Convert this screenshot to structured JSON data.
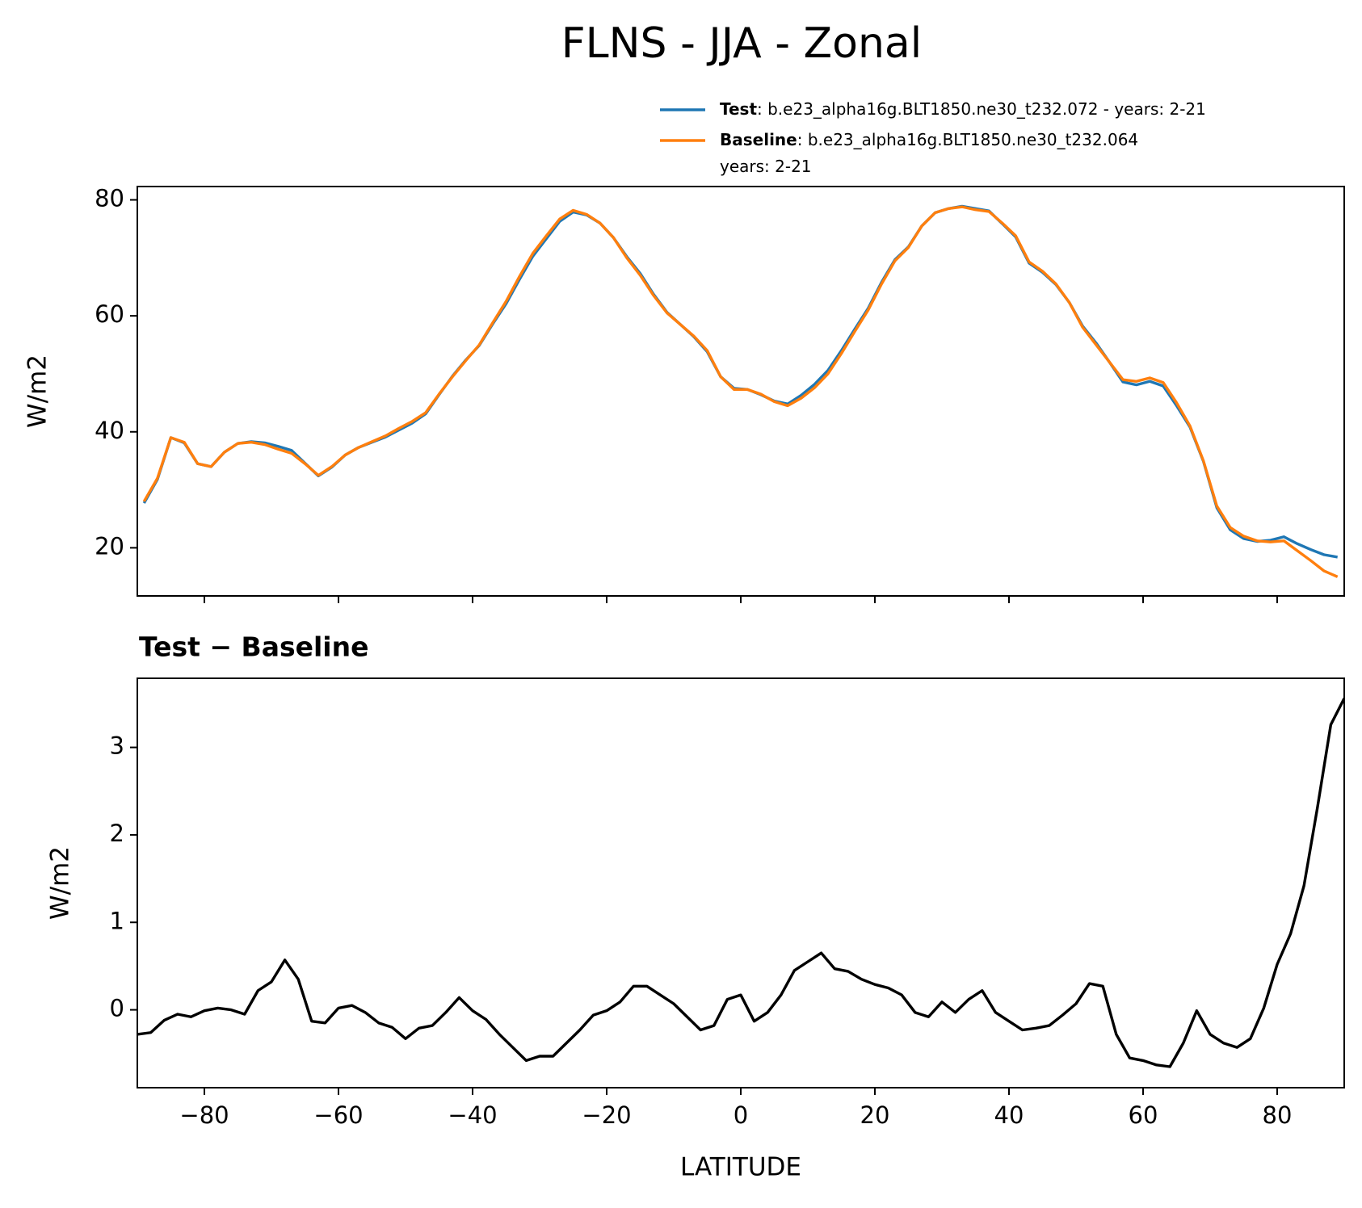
{
  "chart_data": [
    {
      "type": "line",
      "title": "FLNS - JJA - Zonal",
      "ylabel": "W/m2",
      "x": [
        -89,
        -87,
        -85,
        -83,
        -81,
        -79,
        -77,
        -75,
        -73,
        -71,
        -69,
        -67,
        -65,
        -63,
        -61,
        -59,
        -57,
        -55,
        -53,
        -51,
        -49,
        -47,
        -45,
        -43,
        -41,
        -39,
        -37,
        -35,
        -33,
        -31,
        -29,
        -27,
        -25,
        -23,
        -21,
        -19,
        -17,
        -15,
        -13,
        -11,
        -9,
        -7,
        -5,
        -3,
        -1,
        1,
        3,
        5,
        7,
        9,
        11,
        13,
        15,
        17,
        19,
        21,
        23,
        25,
        27,
        29,
        31,
        33,
        35,
        37,
        39,
        41,
        43,
        45,
        47,
        49,
        51,
        53,
        55,
        57,
        59,
        61,
        63,
        65,
        67,
        69,
        71,
        73,
        75,
        77,
        79,
        81,
        83,
        85,
        87,
        89
      ],
      "series": [
        {
          "name": "Test",
          "label": [
            ": b.e23_alpha16g.BLT1850.ne30_t232.072 - years: 2-21"
          ],
          "color": "#1f77b4",
          "values": [
            27.7,
            31.8,
            39.0,
            38.1,
            34.5,
            34,
            36.5,
            38,
            38.3,
            38.1,
            37.5,
            36.8,
            34.6,
            32.4,
            33.9,
            36.0,
            37.3,
            38.2,
            39.1,
            40.3,
            41.5,
            43.1,
            46.4,
            49.6,
            52.4,
            54.9,
            58.6,
            62.1,
            66.3,
            70.3,
            73.3,
            76.3,
            77.9,
            77.4,
            76.0,
            73.5,
            70.2,
            67.3,
            63.7,
            60.6,
            58.5,
            56.4,
            53.8,
            49.5,
            47.5,
            47.3,
            46.4,
            45.3,
            44.8,
            46.3,
            48.2,
            50.6,
            54.0,
            57.7,
            61.3,
            65.8,
            69.7,
            71.9,
            75.5,
            77.8,
            78.5,
            78.9,
            78.5,
            78.1,
            75.9,
            73.6,
            69.1,
            67.5,
            65.4,
            62.3,
            58.2,
            55.3,
            52,
            48.6,
            48.1,
            48.7,
            47.9,
            44.5,
            40.8,
            34.9,
            26.9,
            23.1,
            21.6,
            21.1,
            21.3,
            21.9,
            20.7,
            19.7,
            18.8,
            18.4
          ]
        },
        {
          "name": "Baseline",
          "label": [
            ": b.e23_alpha16g.BLT1850.ne30_t232.064",
            "years: 2-21"
          ],
          "color": "#ff7f0e",
          "values": [
            28,
            32,
            39,
            38.2,
            34.5,
            34,
            36.5,
            38,
            38.2,
            37.8,
            37,
            36.3,
            34.5,
            32.5,
            34,
            36,
            37.3,
            38.3,
            39.3,
            40.6,
            41.8,
            43.3,
            46.5,
            49.5,
            52.3,
            55,
            58.8,
            62.5,
            66.8,
            70.8,
            73.8,
            76.7,
            78.2,
            77.5,
            76,
            73.5,
            70,
            67,
            63.5,
            60.5,
            58.5,
            56.5,
            54,
            49.5,
            47.3,
            47.3,
            46.5,
            45.2,
            44.5,
            45.8,
            47.6,
            50,
            53.5,
            57.3,
            61,
            65.5,
            69.5,
            71.8,
            75.5,
            77.8,
            78.5,
            78.8,
            78.3,
            78,
            76,
            73.8,
            69.3,
            67.7,
            65.5,
            62.3,
            58,
            55,
            52,
            49,
            48.7,
            49.3,
            48.5,
            45,
            41,
            35,
            27.2,
            23.5,
            22,
            21.2,
            21,
            21.2,
            19.5,
            17.8,
            16,
            15
          ]
        }
      ],
      "xlim": [
        -90,
        90
      ],
      "xticks": [
        -80,
        -60,
        -40,
        -20,
        0,
        20,
        40,
        60,
        80
      ],
      "ylim": [
        11.7,
        82.3
      ],
      "yticks": [
        20,
        40,
        60,
        80
      ]
    },
    {
      "type": "line",
      "title": "Test − Baseline",
      "xlabel": "LATITUDE",
      "ylabel": "W/m2",
      "x": [
        -90,
        -88,
        -86,
        -84,
        -82,
        -80,
        -78,
        -76,
        -74,
        -72,
        -70,
        -68,
        -66,
        -64,
        -62,
        -60,
        -58,
        -56,
        -54,
        -52,
        -50,
        -48,
        -46,
        -44,
        -42,
        -40,
        -38,
        -36,
        -34,
        -32,
        -30,
        -28,
        -26,
        -24,
        -22,
        -20,
        -18,
        -16,
        -14,
        -12,
        -10,
        -8,
        -6,
        -4,
        -2,
        0,
        2,
        4,
        6,
        8,
        10,
        12,
        14,
        16,
        18,
        20,
        22,
        24,
        26,
        28,
        30,
        32,
        34,
        36,
        38,
        40,
        42,
        44,
        46,
        48,
        50,
        52,
        54,
        56,
        58,
        60,
        62,
        64,
        66,
        68,
        70,
        72,
        74,
        76,
        78,
        80,
        82,
        84,
        86,
        88,
        90
      ],
      "series": [
        {
          "color": "#000000",
          "values": [
            -0.28,
            -0.26,
            -0.12,
            -0.05,
            -0.08,
            -0.01,
            0.02,
            0.0,
            -0.05,
            0.22,
            0.32,
            0.57,
            0.35,
            -0.13,
            -0.15,
            0.02,
            0.05,
            -0.03,
            -0.15,
            -0.2,
            -0.33,
            -0.21,
            -0.18,
            -0.03,
            0.14,
            -0.01,
            -0.11,
            -0.28,
            -0.43,
            -0.58,
            -0.53,
            -0.53,
            -0.38,
            -0.23,
            -0.06,
            -0.01,
            0.09,
            0.27,
            0.27,
            0.17,
            0.07,
            -0.08,
            -0.23,
            -0.18,
            0.12,
            0.17,
            -0.13,
            -0.03,
            0.17,
            0.45,
            0.55,
            0.65,
            0.47,
            0.44,
            0.35,
            0.29,
            0.25,
            0.17,
            -0.03,
            -0.08,
            0.09,
            -0.03,
            0.12,
            0.22,
            -0.03,
            -0.13,
            -0.23,
            -0.21,
            -0.18,
            -0.06,
            0.07,
            0.3,
            0.27,
            -0.28,
            -0.55,
            -0.58,
            -0.63,
            -0.65,
            -0.38,
            -0.01,
            -0.28,
            -0.38,
            -0.43,
            -0.33,
            0.02,
            0.52,
            0.87,
            1.42,
            2.31,
            3.26,
            3.56
          ]
        }
      ],
      "xlim": [
        -90,
        90
      ],
      "xticks": [
        {
          "value": -80,
          "label": "−80"
        },
        {
          "value": -60,
          "label": "−60"
        },
        {
          "value": -40,
          "label": "−40"
        },
        {
          "value": -20,
          "label": "−20"
        },
        0,
        20,
        40,
        60,
        80
      ],
      "xtick_labels": true,
      "ylim": [
        -0.89,
        3.79
      ],
      "yticks": [
        0,
        1,
        2,
        3
      ]
    }
  ]
}
